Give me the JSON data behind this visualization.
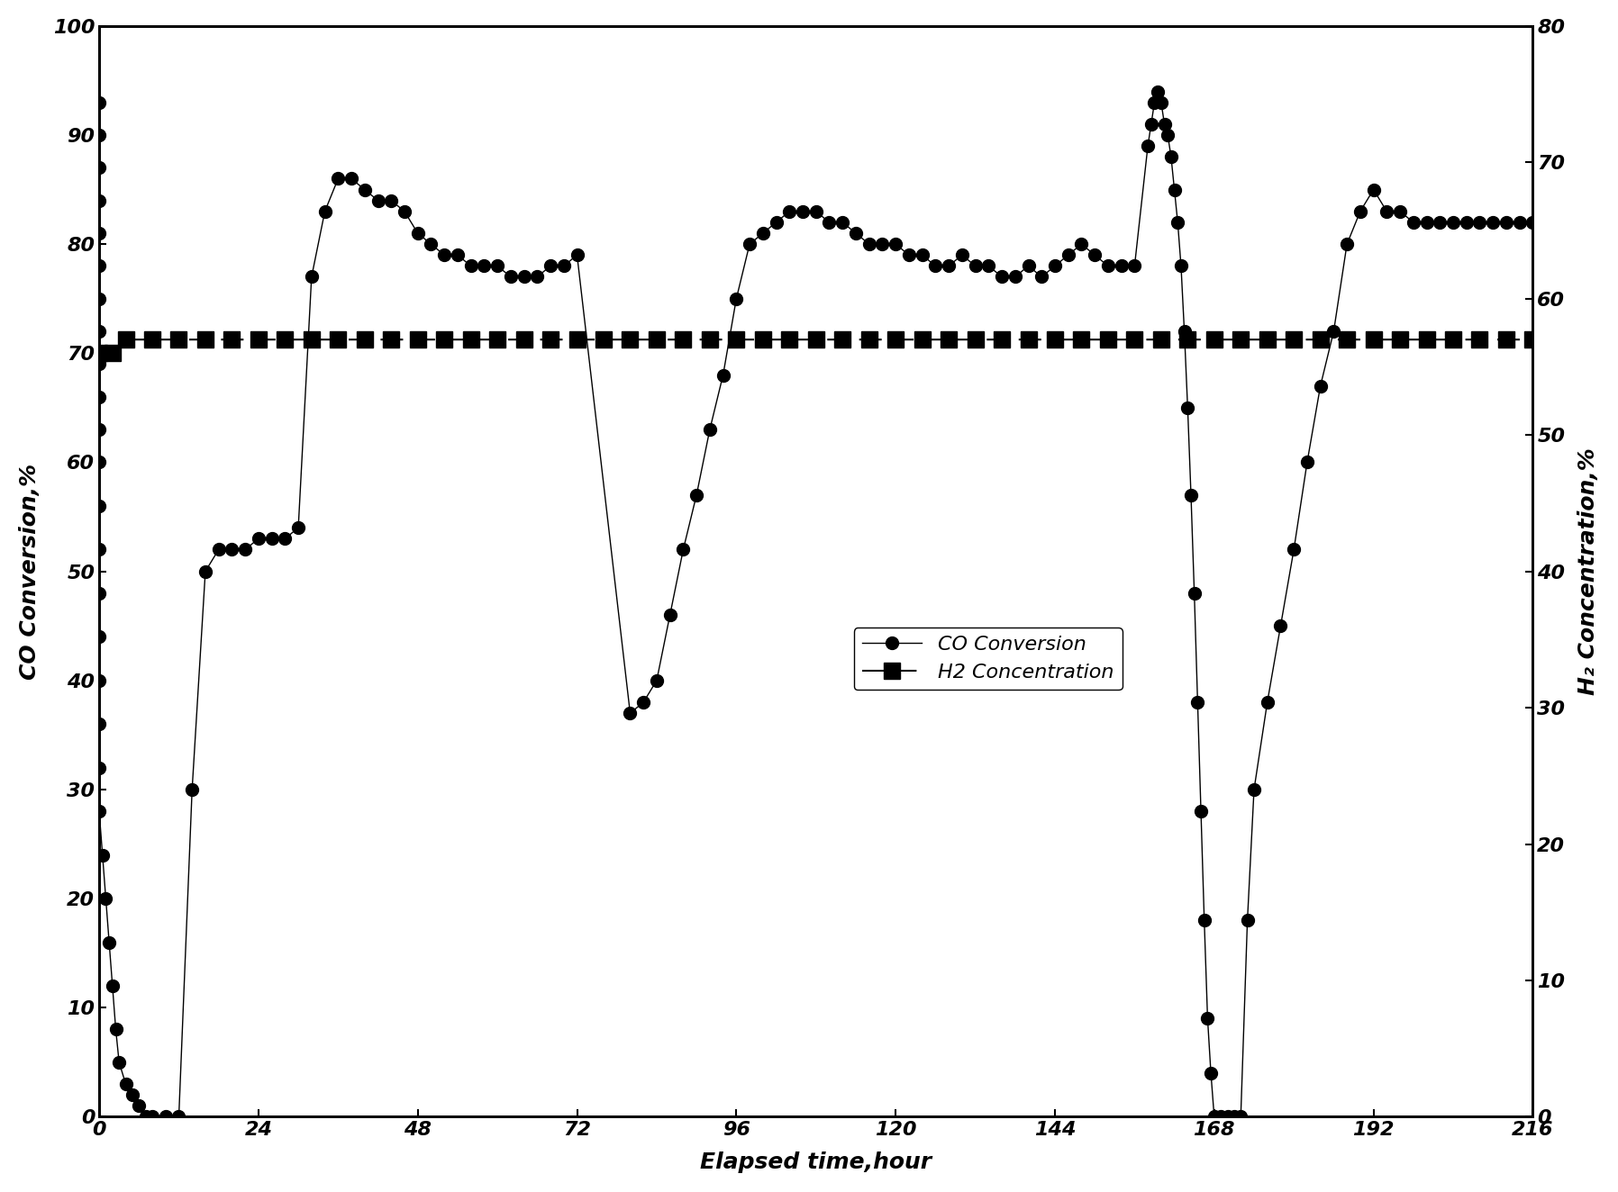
{
  "xlabel": "Elapsed time,hour",
  "ylabel_left": "CO Conversion,%",
  "ylabel_right": "H₂ Concentration,%",
  "xlim": [
    0,
    216
  ],
  "ylim_left": [
    0,
    100
  ],
  "ylim_right": [
    0,
    80
  ],
  "xticks": [
    0,
    24,
    48,
    72,
    96,
    120,
    144,
    168,
    192,
    216
  ],
  "yticks_left": [
    0,
    10,
    20,
    30,
    40,
    50,
    60,
    70,
    80,
    90,
    100
  ],
  "yticks_right": [
    0,
    10,
    20,
    30,
    40,
    50,
    60,
    70,
    80
  ],
  "co_x": [
    0,
    0,
    0,
    0,
    0,
    0,
    0,
    0,
    0,
    0,
    0,
    0,
    0,
    0,
    0,
    0,
    0,
    0,
    0,
    0,
    0.5,
    1,
    1.5,
    2,
    2.5,
    3,
    4,
    5,
    6,
    7,
    8,
    10,
    12,
    14,
    16,
    18,
    20,
    22,
    24,
    26,
    28,
    30,
    32,
    34,
    36,
    38,
    40,
    42,
    44,
    46,
    48,
    50,
    52,
    54,
    56,
    58,
    60,
    62,
    64,
    66,
    68,
    70,
    72,
    80,
    82,
    84,
    86,
    88,
    90,
    92,
    94,
    96,
    98,
    100,
    102,
    104,
    106,
    108,
    110,
    112,
    114,
    116,
    118,
    120,
    122,
    124,
    126,
    128,
    130,
    132,
    134,
    136,
    138,
    140,
    142,
    144,
    146,
    148,
    150,
    152,
    154,
    156,
    158,
    158.5,
    159,
    159.5,
    160,
    160.5,
    161,
    161.5,
    162,
    162.5,
    163,
    163.5,
    164,
    164.5,
    165,
    165.5,
    166,
    166.5,
    167,
    167.5,
    168,
    169,
    170,
    171,
    172,
    173,
    174,
    176,
    178,
    180,
    182,
    184,
    186,
    188,
    190,
    192,
    194,
    196,
    198,
    200,
    202,
    204,
    206,
    208,
    210,
    212,
    214,
    216
  ],
  "co_y": [
    93,
    90,
    87,
    84,
    81,
    78,
    75,
    72,
    69,
    66,
    63,
    60,
    56,
    52,
    48,
    44,
    40,
    36,
    32,
    28,
    24,
    20,
    16,
    12,
    8,
    5,
    3,
    2,
    1,
    0,
    0,
    0,
    0,
    30,
    50,
    52,
    52,
    52,
    53,
    53,
    53,
    54,
    77,
    83,
    86,
    86,
    85,
    84,
    84,
    83,
    81,
    80,
    79,
    79,
    78,
    78,
    78,
    77,
    77,
    77,
    78,
    78,
    79,
    37,
    38,
    40,
    46,
    52,
    57,
    63,
    68,
    75,
    80,
    81,
    82,
    83,
    83,
    83,
    82,
    82,
    81,
    80,
    80,
    80,
    79,
    79,
    78,
    78,
    79,
    78,
    78,
    77,
    77,
    78,
    77,
    78,
    79,
    80,
    79,
    78,
    78,
    78,
    89,
    91,
    93,
    94,
    93,
    91,
    90,
    88,
    85,
    82,
    78,
    72,
    65,
    57,
    48,
    38,
    28,
    18,
    9,
    4,
    0,
    0,
    0,
    0,
    0,
    18,
    30,
    38,
    45,
    52,
    60,
    67,
    72,
    80,
    83,
    85,
    83,
    83,
    82,
    82,
    82,
    82,
    82,
    82,
    82,
    82,
    82,
    82
  ],
  "h2_x": [
    0,
    2,
    4,
    8,
    12,
    16,
    20,
    24,
    28,
    32,
    36,
    40,
    44,
    48,
    52,
    56,
    60,
    64,
    68,
    72,
    76,
    80,
    84,
    88,
    92,
    96,
    100,
    104,
    108,
    112,
    116,
    120,
    124,
    128,
    132,
    136,
    140,
    144,
    148,
    152,
    156,
    160,
    164,
    168,
    172,
    176,
    180,
    184,
    188,
    192,
    196,
    200,
    204,
    208,
    212,
    216
  ],
  "h2_y": [
    56,
    56,
    57,
    57,
    57,
    57,
    57,
    57,
    57,
    57,
    57,
    57,
    57,
    57,
    57,
    57,
    57,
    57,
    57,
    57,
    57,
    57,
    57,
    57,
    57,
    57,
    57,
    57,
    57,
    57,
    57,
    57,
    57,
    57,
    57,
    57,
    57,
    57,
    57,
    57,
    57,
    57,
    57,
    57,
    57,
    57,
    57,
    57,
    57,
    57,
    57,
    57,
    57,
    57,
    57,
    57
  ],
  "co_label": "CO Conversion",
  "h2_label": "H2 Concentration",
  "fontsize_tick": 16,
  "fontsize_axislabel": 18,
  "fontsize_legend": 16
}
